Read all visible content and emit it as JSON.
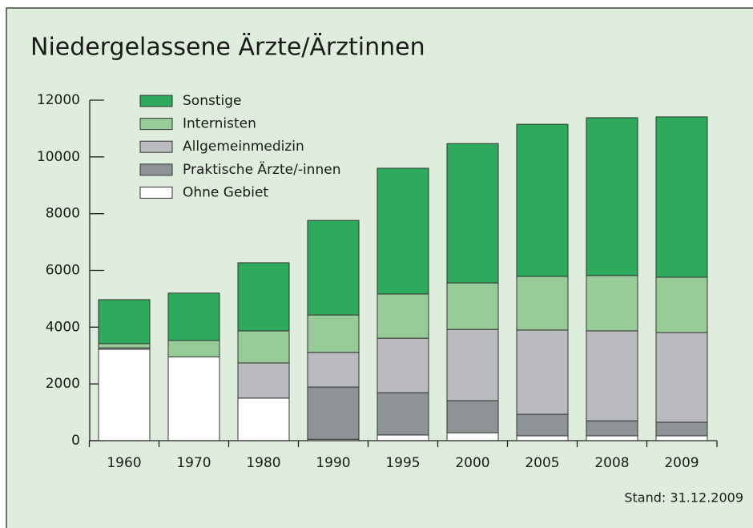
{
  "chart_data": {
    "type": "stacked_bar",
    "title": "Niedergelassene Ärzte/Ärztinnen",
    "annotation": "Stand: 31.12.2009",
    "categories": [
      "1960",
      "1970",
      "1980",
      "1990",
      "1995",
      "2000",
      "2005",
      "2008",
      "2009"
    ],
    "series": [
      {
        "name": "Ohne Gebiet",
        "color": "#ffffff",
        "values": [
          3220,
          2950,
          1500,
          50,
          200,
          280,
          170,
          170,
          170
        ]
      },
      {
        "name": "Praktische Ärzte/-innen",
        "color": "#8e9396",
        "values": [
          0,
          0,
          0,
          1840,
          1490,
          1130,
          760,
          530,
          480
        ]
      },
      {
        "name": "Allgemeinmedizin",
        "color": "#b9bbbe",
        "values": [
          50,
          0,
          1240,
          1220,
          1920,
          2510,
          2970,
          3170,
          3160
        ]
      },
      {
        "name": "Internisten",
        "color": "#97cc98",
        "values": [
          150,
          580,
          1130,
          1320,
          1560,
          1640,
          1890,
          1950,
          1950
        ]
      },
      {
        "name": "Sonstige",
        "color": "#2eaa5c",
        "values": [
          1550,
          1670,
          2400,
          3330,
          4430,
          4910,
          5360,
          5560,
          5650
        ]
      }
    ],
    "ylim": [
      0,
      12000
    ],
    "yticks": [
      0,
      2000,
      4000,
      6000,
      8000,
      10000,
      12000
    ],
    "grid": false
  }
}
